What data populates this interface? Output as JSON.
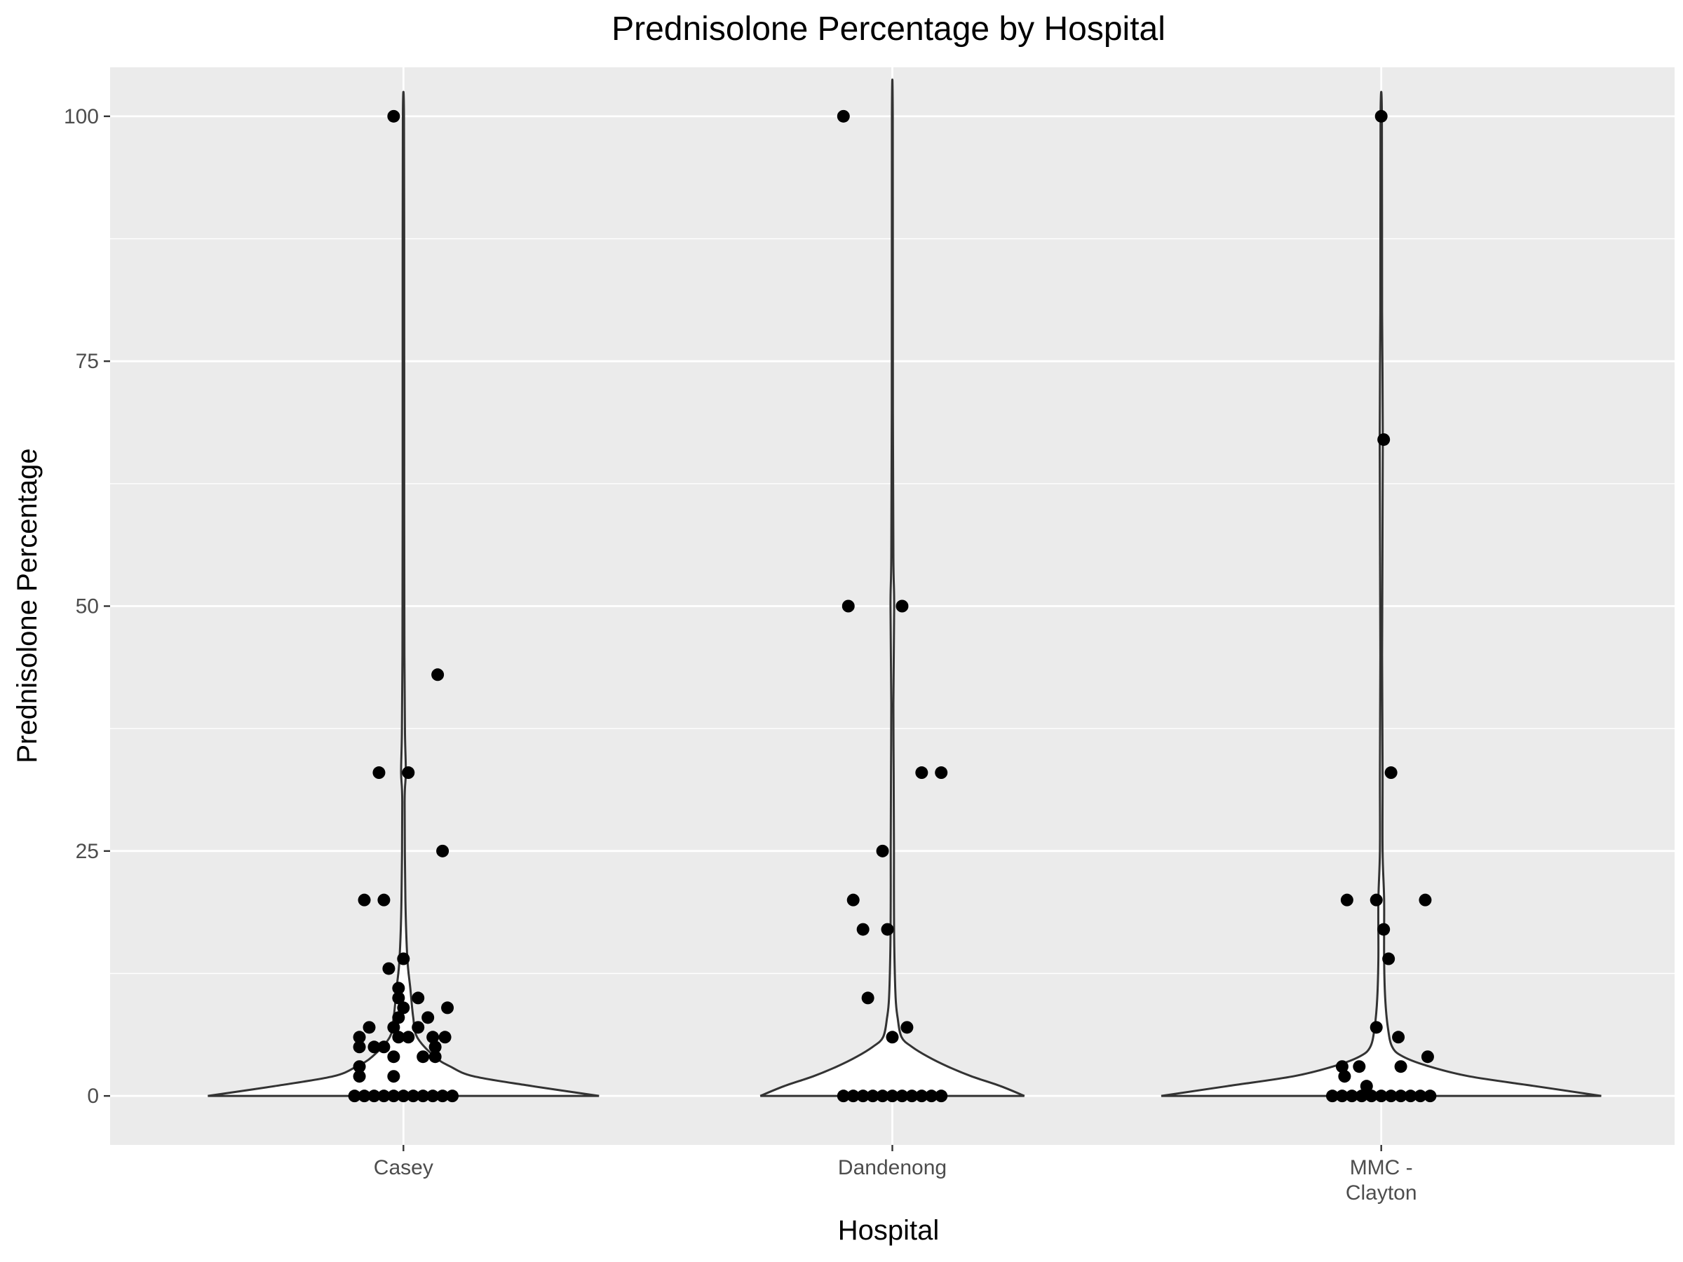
{
  "chart_data": {
    "type": "violin",
    "title": "Prednisolone Percentage by Hospital",
    "xlabel": "Hospital",
    "ylabel": "Prednisolone Percentage",
    "ylim": [
      -5,
      105
    ],
    "yticks": [
      0,
      25,
      50,
      75,
      100
    ],
    "grid": true,
    "legend": "none",
    "colors": {
      "panel": "#ebebeb",
      "grid": "#ffffff",
      "violin_fill": "#ffffff",
      "violin_line": "#333333",
      "point": "#000000"
    },
    "categories": [
      {
        "label_lines": [
          "Casey"
        ],
        "violin_max_width": 0.8,
        "violin_profile": [
          [
            0,
            1.0
          ],
          [
            1,
            0.66
          ],
          [
            2,
            0.36
          ],
          [
            3,
            0.24
          ],
          [
            4,
            0.16
          ],
          [
            6,
            0.07
          ],
          [
            8,
            0.05
          ],
          [
            11,
            0.035
          ],
          [
            14,
            0.02
          ],
          [
            20,
            0.01
          ],
          [
            30,
            0.006
          ],
          [
            33,
            0.012
          ],
          [
            37,
            0.008
          ],
          [
            45,
            0.005
          ],
          [
            60,
            0.004
          ],
          [
            80,
            0.004
          ],
          [
            100,
            0.003
          ]
        ],
        "points": [
          [
            -0.1,
            0
          ],
          [
            -0.08,
            0
          ],
          [
            -0.06,
            0
          ],
          [
            -0.04,
            0
          ],
          [
            -0.02,
            0
          ],
          [
            0,
            0
          ],
          [
            0.02,
            0
          ],
          [
            0.04,
            0
          ],
          [
            0.06,
            0
          ],
          [
            0.08,
            0
          ],
          [
            0.1,
            0
          ],
          [
            -0.02,
            100
          ],
          [
            0.07,
            43
          ],
          [
            -0.05,
            33
          ],
          [
            0.01,
            33
          ],
          [
            0.08,
            25
          ],
          [
            -0.08,
            20
          ],
          [
            -0.04,
            20
          ],
          [
            -0.03,
            13
          ],
          [
            0,
            14
          ],
          [
            -0.01,
            11
          ],
          [
            0.03,
            10
          ],
          [
            -0.01,
            10
          ],
          [
            0,
            9
          ],
          [
            0.09,
            9
          ],
          [
            -0.01,
            8
          ],
          [
            0.05,
            8
          ],
          [
            -0.07,
            7
          ],
          [
            0.03,
            7
          ],
          [
            -0.02,
            7
          ],
          [
            -0.09,
            6
          ],
          [
            -0.01,
            6
          ],
          [
            0.01,
            6
          ],
          [
            0.06,
            6
          ],
          [
            0.085,
            6
          ],
          [
            -0.09,
            5
          ],
          [
            -0.06,
            5
          ],
          [
            -0.04,
            5
          ],
          [
            0.065,
            5
          ],
          [
            -0.02,
            4
          ],
          [
            0.04,
            4
          ],
          [
            0.065,
            4
          ],
          [
            -0.09,
            3
          ],
          [
            -0.09,
            2
          ],
          [
            -0.02,
            2
          ]
        ]
      },
      {
        "label_lines": [
          "Dandenong"
        ],
        "violin_max_width": 0.54,
        "violin_profile": [
          [
            0,
            1.0
          ],
          [
            1,
            0.82
          ],
          [
            2,
            0.6
          ],
          [
            3,
            0.42
          ],
          [
            4,
            0.27
          ],
          [
            5,
            0.15
          ],
          [
            6,
            0.07
          ],
          [
            8,
            0.04
          ],
          [
            10,
            0.025
          ],
          [
            15,
            0.015
          ],
          [
            20,
            0.012
          ],
          [
            25,
            0.012
          ],
          [
            33,
            0.01
          ],
          [
            40,
            0.008
          ],
          [
            50,
            0.014
          ],
          [
            55,
            0.008
          ],
          [
            70,
            0.004
          ],
          [
            100,
            0.003
          ]
        ],
        "points": [
          [
            -0.1,
            0
          ],
          [
            -0.08,
            0
          ],
          [
            -0.06,
            0
          ],
          [
            -0.04,
            0
          ],
          [
            -0.02,
            0
          ],
          [
            0,
            0
          ],
          [
            0.02,
            0
          ],
          [
            0.04,
            0
          ],
          [
            0.06,
            0
          ],
          [
            0.08,
            0
          ],
          [
            0.1,
            0
          ],
          [
            -0.1,
            100
          ],
          [
            -0.09,
            50
          ],
          [
            0.02,
            50
          ],
          [
            0.06,
            33
          ],
          [
            0.1,
            33
          ],
          [
            -0.02,
            25
          ],
          [
            -0.08,
            20
          ],
          [
            -0.06,
            17
          ],
          [
            -0.01,
            17
          ],
          [
            -0.05,
            10
          ],
          [
            0.03,
            7
          ],
          [
            0,
            6
          ]
        ]
      },
      {
        "label_lines": [
          "MMC -",
          "Clayton"
        ],
        "violin_max_width": 0.9,
        "violin_profile": [
          [
            0,
            1.0
          ],
          [
            1,
            0.7
          ],
          [
            2,
            0.4
          ],
          [
            3,
            0.22
          ],
          [
            4,
            0.1
          ],
          [
            5,
            0.05
          ],
          [
            7,
            0.03
          ],
          [
            10,
            0.018
          ],
          [
            14,
            0.013
          ],
          [
            20,
            0.013
          ],
          [
            25,
            0.006
          ],
          [
            33,
            0.006
          ],
          [
            45,
            0.004
          ],
          [
            67,
            0.007
          ],
          [
            80,
            0.004
          ],
          [
            100,
            0.003
          ]
        ],
        "points": [
          [
            -0.1,
            0
          ],
          [
            -0.08,
            0
          ],
          [
            -0.06,
            0
          ],
          [
            -0.04,
            0
          ],
          [
            -0.02,
            0
          ],
          [
            0,
            0
          ],
          [
            0.02,
            0
          ],
          [
            0.04,
            0
          ],
          [
            0.06,
            0
          ],
          [
            0.08,
            0
          ],
          [
            0.1,
            0
          ],
          [
            0,
            100
          ],
          [
            0.005,
            67
          ],
          [
            0.02,
            33
          ],
          [
            -0.07,
            20
          ],
          [
            -0.01,
            20
          ],
          [
            0.09,
            20
          ],
          [
            0.005,
            17
          ],
          [
            0.015,
            14
          ],
          [
            -0.01,
            7
          ],
          [
            0.035,
            6
          ],
          [
            0.095,
            4
          ],
          [
            -0.08,
            3
          ],
          [
            -0.045,
            3
          ],
          [
            0.04,
            3
          ],
          [
            -0.075,
            2
          ],
          [
            -0.03,
            1
          ]
        ]
      }
    ]
  }
}
